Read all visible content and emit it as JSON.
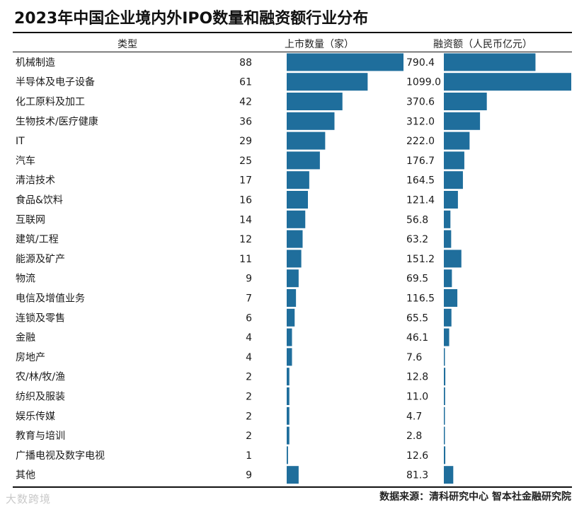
{
  "chart_data": {
    "type": "table",
    "title": "2023年中国企业境内外IPO数量和融资额行业分布",
    "headers": {
      "category": "类型",
      "count": "上市数量（家）",
      "amount": "融资额（人民币亿元）"
    },
    "categories": [
      "机械制造",
      "半导体及电子设备",
      "化工原料及加工",
      "生物技术/医疗健康",
      "IT",
      "汽车",
      "清洁技术",
      "食品&饮料",
      "互联网",
      "建筑/工程",
      "能源及矿产",
      "物流",
      "电信及增值业务",
      "连锁及零售",
      "金融",
      "房地产",
      "农/林/牧/渔",
      "纺织及服装",
      "娱乐传媒",
      "教育与培训",
      "广播电视及数字电视",
      "其他"
    ],
    "series": [
      {
        "name": "上市数量（家）",
        "unit": "家",
        "values": [
          88,
          61,
          42,
          36,
          29,
          25,
          17,
          16,
          14,
          12,
          11,
          9,
          7,
          6,
          4,
          4,
          2,
          2,
          2,
          2,
          1,
          9
        ]
      },
      {
        "name": "融资额（人民币亿元）",
        "unit": "人民币亿元",
        "values": [
          790.4,
          1099.0,
          370.6,
          312.0,
          222.0,
          176.7,
          164.5,
          121.4,
          56.8,
          63.2,
          151.2,
          69.5,
          116.5,
          65.5,
          46.1,
          7.6,
          12.8,
          11.0,
          4.7,
          2.8,
          12.6,
          81.3
        ]
      }
    ],
    "count_range": [
      0,
      88
    ],
    "amount_range": [
      0,
      1099.0
    ],
    "bar_color": "#1f6e9c",
    "source": "数据来源：清科研究中心 智本社金融研究院"
  },
  "watermark": "大数跨境"
}
